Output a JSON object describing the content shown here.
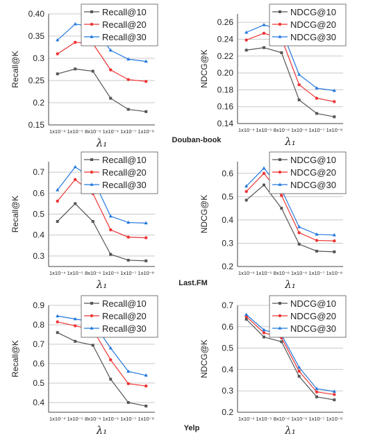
{
  "x_tick_labels": [
    "1x10⁻⁴",
    "1x10⁻⁵",
    "8x10⁻⁶",
    "1x10⁻⁶",
    "1x10⁻⁷",
    "1x10⁻⁸"
  ],
  "xlabel": "λ₁",
  "dataset_labels": [
    "Douban-book",
    "Last.FM",
    "Yelp"
  ],
  "colors": {
    "k10": "#555555",
    "k20": "#ee3333",
    "k30": "#2277dd",
    "grid": "#c8c8c8",
    "axis": "#444444"
  },
  "chart_data": [
    {
      "type": "line",
      "dataset": "Douban-book",
      "ylabel": "Recall@K",
      "ylim": [
        0.15,
        0.4
      ],
      "yticks": [
        "0.15",
        "0.2",
        "0.25",
        "0.3",
        "0.35",
        "0.40"
      ],
      "legend": "top-right",
      "grid": true,
      "categories": [
        "1x10⁻⁴",
        "1x10⁻⁵",
        "8x10⁻⁶",
        "1x10⁻⁶",
        "1x10⁻⁷",
        "1x10⁻⁸"
      ],
      "series": [
        {
          "name": "Recall@10",
          "values": [
            0.265,
            0.276,
            0.271,
            0.21,
            0.185,
            0.18
          ]
        },
        {
          "name": "Recall@20",
          "values": [
            0.31,
            0.336,
            0.333,
            0.274,
            0.252,
            0.248
          ]
        },
        {
          "name": "Recall@30",
          "values": [
            0.341,
            0.377,
            0.372,
            0.318,
            0.298,
            0.293
          ]
        }
      ]
    },
    {
      "type": "line",
      "dataset": "Douban-book",
      "ylabel": "NDCG@K",
      "ylim": [
        0.14,
        0.27
      ],
      "yticks": [
        "0.14",
        "0.16",
        "0.18",
        "0.20",
        "0.22",
        "0.24",
        "0.26"
      ],
      "legend": "top-right",
      "grid": true,
      "categories": [
        "1x10⁻⁴",
        "1x10⁻⁵",
        "8x10⁻⁶",
        "1x10⁻⁶",
        "1x10⁻⁷",
        "1x10⁻⁸"
      ],
      "series": [
        {
          "name": "NDCG@10",
          "values": [
            0.227,
            0.23,
            0.224,
            0.168,
            0.152,
            0.148
          ]
        },
        {
          "name": "NDCG@20",
          "values": [
            0.239,
            0.247,
            0.241,
            0.186,
            0.17,
            0.166
          ]
        },
        {
          "name": "NDCG@30",
          "values": [
            0.248,
            0.257,
            0.251,
            0.198,
            0.182,
            0.179
          ]
        }
      ]
    },
    {
      "type": "line",
      "dataset": "Last.FM",
      "ylabel": "Recall@K",
      "ylim": [
        0.25,
        0.75
      ],
      "yticks": [
        "0.3",
        "0.4",
        "0.5",
        "0.6",
        "0.7"
      ],
      "legend": "top-right",
      "grid": true,
      "categories": [
        "1x10⁻⁴",
        "1x10⁻⁵",
        "8x10⁻⁶",
        "1x10⁻⁶",
        "1x10⁻⁷",
        "1x10⁻⁸"
      ],
      "series": [
        {
          "name": "Recall@10",
          "values": [
            0.465,
            0.55,
            0.465,
            0.308,
            0.28,
            0.277
          ]
        },
        {
          "name": "Recall@20",
          "values": [
            0.562,
            0.665,
            0.598,
            0.425,
            0.39,
            0.387
          ]
        },
        {
          "name": "Recall@30",
          "values": [
            0.615,
            0.725,
            0.668,
            0.49,
            0.46,
            0.457
          ]
        }
      ]
    },
    {
      "type": "line",
      "dataset": "Last.FM",
      "ylabel": "NDCG@K",
      "ylim": [
        0.2,
        0.65
      ],
      "yticks": [
        "0.2",
        "0.3",
        "0.4",
        "0.5",
        "0.6"
      ],
      "legend": "top-right",
      "grid": true,
      "categories": [
        "1x10⁻⁴",
        "1x10⁻⁵",
        "8x10⁻⁶",
        "1x10⁻⁶",
        "1x10⁻⁷",
        "1x10⁻⁸"
      ],
      "series": [
        {
          "name": "NDCG@10",
          "values": [
            0.485,
            0.55,
            0.45,
            0.296,
            0.266,
            0.263
          ]
        },
        {
          "name": "NDCG@20",
          "values": [
            0.522,
            0.6,
            0.505,
            0.345,
            0.312,
            0.31
          ]
        },
        {
          "name": "NDCG@30",
          "values": [
            0.545,
            0.622,
            0.53,
            0.37,
            0.338,
            0.335
          ]
        }
      ]
    },
    {
      "type": "line",
      "dataset": "Yelp",
      "ylabel": "Recall@K",
      "ylim": [
        0.35,
        0.9
      ],
      "yticks": [
        "0.4",
        "0.5",
        "0.6",
        "0.7",
        "0.8",
        "0.9"
      ],
      "legend": "top-right",
      "grid": true,
      "categories": [
        "1x10⁻⁴",
        "1x10⁻⁵",
        "8x10⁻⁶",
        "1x10⁻⁶",
        "1x10⁻⁷",
        "1x10⁻⁸"
      ],
      "series": [
        {
          "name": "Recall@10",
          "values": [
            0.76,
            0.715,
            0.695,
            0.52,
            0.4,
            0.382
          ]
        },
        {
          "name": "Recall@20",
          "values": [
            0.815,
            0.795,
            0.775,
            0.62,
            0.497,
            0.485
          ]
        },
        {
          "name": "Recall@30",
          "values": [
            0.845,
            0.83,
            0.815,
            0.68,
            0.56,
            0.54
          ]
        }
      ]
    },
    {
      "type": "line",
      "dataset": "Yelp",
      "ylabel": "NDCG@K",
      "ylim": [
        0.2,
        0.7
      ],
      "yticks": [
        "0.2",
        "0.3",
        "0.4",
        "0.5",
        "0.6",
        "0.7"
      ],
      "legend": "top-right",
      "grid": true,
      "categories": [
        "1x10⁻⁴",
        "1x10⁻⁵",
        "8x10⁻⁶",
        "1x10⁻⁶",
        "1x10⁻⁷",
        "1x10⁻⁸"
      ],
      "series": [
        {
          "name": "NDCG@10",
          "values": [
            0.635,
            0.552,
            0.53,
            0.368,
            0.272,
            0.258
          ]
        },
        {
          "name": "NDCG@20",
          "values": [
            0.648,
            0.572,
            0.548,
            0.392,
            0.295,
            0.283
          ]
        },
        {
          "name": "NDCG@30",
          "values": [
            0.657,
            0.585,
            0.562,
            0.41,
            0.31,
            0.297
          ]
        }
      ]
    }
  ]
}
